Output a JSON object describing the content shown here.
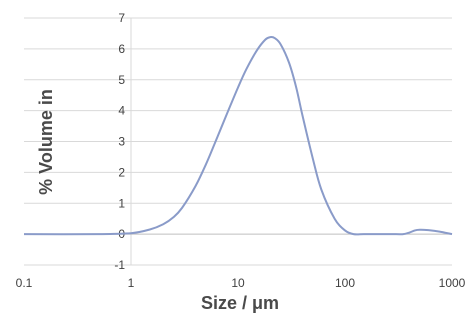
{
  "chart_data": {
    "type": "line",
    "title": "",
    "xlabel": "Size / μm",
    "ylabel": "% Volume in",
    "x_scale": "log",
    "xlim": [
      0.1,
      1000
    ],
    "ylim": [
      -1,
      7
    ],
    "x_ticks": [
      "0.1",
      "1",
      "10",
      "100",
      "1000"
    ],
    "x_tick_values": [
      0.1,
      1,
      10,
      100,
      1000
    ],
    "y_ticks": [
      "-1",
      "0",
      "1",
      "2",
      "3",
      "4",
      "5",
      "6",
      "7"
    ],
    "y_tick_values": [
      -1,
      0,
      1,
      2,
      3,
      4,
      5,
      6,
      7
    ],
    "grid": true,
    "line_color": "#8a9bc9",
    "series": [
      {
        "x": [
          0.1,
          0.5,
          1.0,
          1.5,
          2.0,
          2.5,
          3.0,
          4.0,
          5.0,
          6.0,
          8.0,
          10.0,
          12.0,
          15.0,
          18.0,
          20.0,
          22.0,
          25.0,
          30.0,
          35.0,
          40.0,
          50.0,
          60.0,
          80.0,
          100.0,
          120.0,
          150.0,
          200.0,
          300.0,
          350.0,
          400.0,
          450.0,
          500.0,
          600.0,
          700.0,
          800.0,
          1000.0
        ],
        "y": [
          0.0,
          0.0,
          0.03,
          0.15,
          0.32,
          0.55,
          0.85,
          1.55,
          2.25,
          2.9,
          3.95,
          4.75,
          5.35,
          5.95,
          6.3,
          6.38,
          6.35,
          6.15,
          5.55,
          4.75,
          3.85,
          2.45,
          1.45,
          0.5,
          0.12,
          0.0,
          0.0,
          0.0,
          0.0,
          0.0,
          0.05,
          0.12,
          0.14,
          0.13,
          0.1,
          0.07,
          0.0
        ]
      }
    ]
  }
}
